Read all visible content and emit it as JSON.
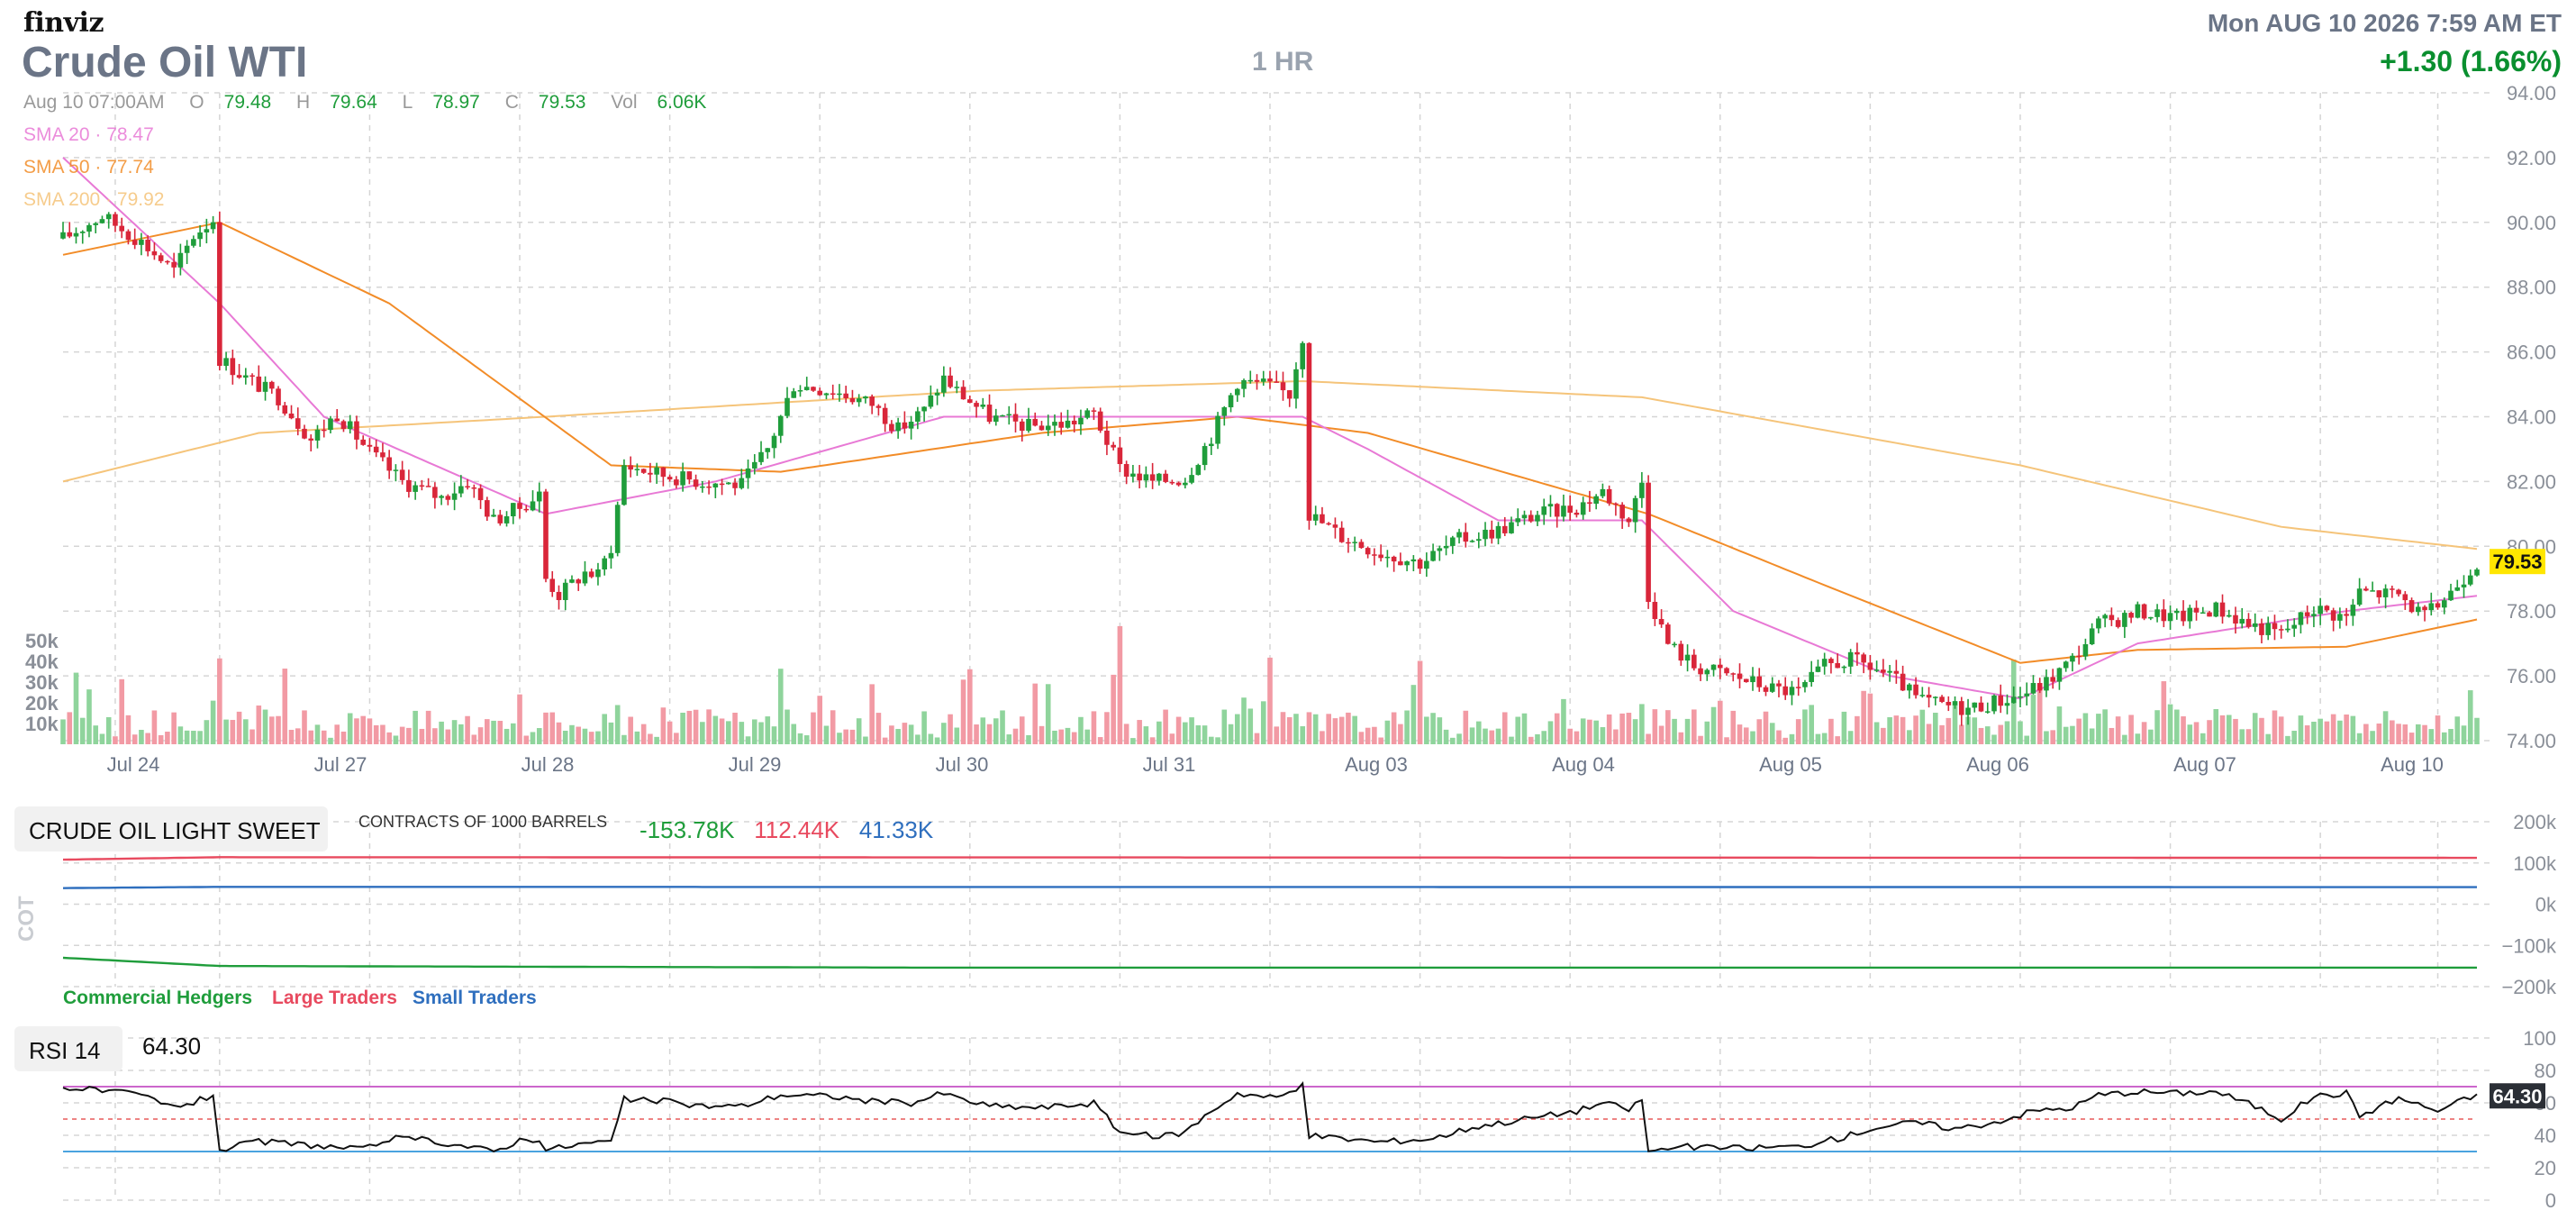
{
  "header": {
    "logo": "finviz",
    "symbol_title": "Crude Oil WTI",
    "timeframe": "1 HR",
    "datetime": "Mon AUG 10 2026 7:59 AM ET",
    "change": "+1.30 (1.66%)"
  },
  "ohlc": {
    "date": "Aug 10 07:00AM",
    "open_label": "O",
    "open": "79.48",
    "high_label": "H",
    "high": "79.64",
    "low_label": "L",
    "low": "78.97",
    "close_label": "C",
    "close": "79.53",
    "vol_label": "Vol",
    "vol": "6.06K"
  },
  "sma": [
    {
      "label": "SMA 20",
      "value": "78.47",
      "color": "#e879d5"
    },
    {
      "label": "SMA 50",
      "value": "77.74",
      "color": "#f28c28"
    },
    {
      "label": "SMA 200",
      "value": "79.92",
      "color": "#f5c47a"
    }
  ],
  "last_price_tag": "79.53",
  "colors": {
    "up": "#1f9d3b",
    "down": "#d9263a",
    "vol_up": "#8fd49c",
    "vol_down": "#f29aa4",
    "grid": "#d5d5d5",
    "tag": "#ffe600",
    "commercial": "#1f9d3b",
    "large": "#e84a5f",
    "small": "#2f6fbe",
    "rsi_upper": "#cc66cc",
    "rsi_lower": "#4aa3df",
    "rsi_mid": "#e85a5a"
  },
  "cot": {
    "title": "CRUDE OIL LIGHT SWEET",
    "subtitle": "CONTRACTS OF 1000 BARRELS",
    "side_label": "COT",
    "commercial_value": "-153.78K",
    "large_value": "112.44K",
    "small_value": "41.33K",
    "legend": {
      "commercial": "Commercial Hedgers",
      "large": "Large Traders",
      "small": "Small Traders"
    },
    "axis_ticks": [
      "200k",
      "100k",
      "0k",
      "−100k",
      "−200k"
    ]
  },
  "rsi": {
    "label": "RSI 14",
    "value": "64.30",
    "axis_ticks": [
      "100",
      "80",
      "60",
      "40",
      "20",
      "0"
    ]
  },
  "chart_data": [
    {
      "type": "candlestick",
      "title": "Crude Oil WTI",
      "timeframe": "1 HR",
      "x_ticks": [
        "Jul 24",
        "Jul 27",
        "Jul 28",
        "Jul 29",
        "Jul 30",
        "Jul 31",
        "Aug 03",
        "Aug 04",
        "Aug 05",
        "Aug 06",
        "Aug 07",
        "Aug 10"
      ],
      "y_ticks": [
        "94.00",
        "92.00",
        "90.00",
        "88.00",
        "86.00",
        "84.00",
        "82.00",
        "80.00",
        "78.00",
        "76.00",
        "74.00"
      ],
      "ylim": [
        74,
        94
      ],
      "volume_ticks": [
        "50k",
        "40k",
        "30k",
        "20k",
        "10k"
      ],
      "volume_max": 60000,
      "close_path": [
        [
          0,
          89.5
        ],
        [
          6,
          90.2
        ],
        [
          12,
          89.4
        ],
        [
          17,
          88.5
        ],
        [
          20,
          89.6
        ],
        [
          23,
          90.1
        ],
        [
          24,
          85.8
        ],
        [
          28,
          85.2
        ],
        [
          33,
          84.6
        ],
        [
          38,
          83.3
        ],
        [
          42,
          84.1
        ],
        [
          47,
          82.9
        ],
        [
          52,
          82.0
        ],
        [
          58,
          81.5
        ],
        [
          62,
          82.0
        ],
        [
          66,
          80.8
        ],
        [
          70,
          81.2
        ],
        [
          73,
          81.6
        ],
        [
          74,
          79.0
        ],
        [
          76,
          78.5
        ],
        [
          80,
          79.2
        ],
        [
          82,
          79.1
        ],
        [
          84,
          80.0
        ],
        [
          86,
          82.5
        ],
        [
          92,
          82.2
        ],
        [
          98,
          82.0
        ],
        [
          104,
          81.9
        ],
        [
          108,
          83.0
        ],
        [
          112,
          85.0
        ],
        [
          118,
          84.8
        ],
        [
          124,
          84.4
        ],
        [
          128,
          83.6
        ],
        [
          132,
          84.2
        ],
        [
          135,
          85.2
        ],
        [
          137,
          84.8
        ],
        [
          142,
          84.0
        ],
        [
          148,
          83.7
        ],
        [
          154,
          83.8
        ],
        [
          158,
          84.1
        ],
        [
          162,
          82.4
        ],
        [
          167,
          82.0
        ],
        [
          172,
          82.1
        ],
        [
          176,
          83.4
        ],
        [
          180,
          85.1
        ],
        [
          184,
          85.0
        ],
        [
          188,
          84.7
        ],
        [
          190,
          86.5
        ],
        [
          191,
          81.0
        ],
        [
          196,
          80.3
        ],
        [
          202,
          79.8
        ],
        [
          208,
          79.5
        ],
        [
          214,
          80.2
        ],
        [
          220,
          80.5
        ],
        [
          226,
          81.0
        ],
        [
          232,
          81.2
        ],
        [
          236,
          81.7
        ],
        [
          240,
          80.8
        ],
        [
          242,
          82.0
        ],
        [
          243,
          78.5
        ],
        [
          246,
          77.0
        ],
        [
          250,
          76.3
        ],
        [
          256,
          76.0
        ],
        [
          262,
          75.6
        ],
        [
          266,
          75.5
        ],
        [
          270,
          76.3
        ],
        [
          274,
          76.5
        ],
        [
          278,
          76.2
        ],
        [
          282,
          75.7
        ],
        [
          284,
          75.3
        ],
        [
          288,
          75.1
        ],
        [
          292,
          75.0
        ],
        [
          296,
          75.2
        ],
        [
          300,
          75.4
        ],
        [
          304,
          75.8
        ],
        [
          308,
          76.5
        ],
        [
          312,
          77.6
        ],
        [
          316,
          77.8
        ],
        [
          318,
          78.0
        ],
        [
          324,
          77.8
        ],
        [
          330,
          78.1
        ],
        [
          335,
          77.6
        ],
        [
          340,
          77.3
        ],
        [
          345,
          78.1
        ],
        [
          350,
          77.8
        ],
        [
          352,
          78.6
        ],
        [
          358,
          78.5
        ],
        [
          362,
          77.8
        ],
        [
          366,
          78.6
        ],
        [
          370,
          79.53
        ]
      ],
      "sma20_path": [
        [
          0,
          92.0
        ],
        [
          24,
          87.5
        ],
        [
          40,
          84.0
        ],
        [
          74,
          81.0
        ],
        [
          100,
          82.0
        ],
        [
          135,
          84.0
        ],
        [
          180,
          84.0
        ],
        [
          190,
          84.0
        ],
        [
          200,
          83.0
        ],
        [
          220,
          80.8
        ],
        [
          242,
          80.8
        ],
        [
          256,
          78.0
        ],
        [
          280,
          76.0
        ],
        [
          300,
          75.3
        ],
        [
          318,
          77.0
        ],
        [
          350,
          78.0
        ],
        [
          370,
          78.47
        ]
      ],
      "sma50_path": [
        [
          0,
          89.0
        ],
        [
          24,
          90.0
        ],
        [
          50,
          87.5
        ],
        [
          84,
          82.5
        ],
        [
          110,
          82.3
        ],
        [
          150,
          83.5
        ],
        [
          180,
          84.0
        ],
        [
          200,
          83.5
        ],
        [
          243,
          81.0
        ],
        [
          270,
          78.8
        ],
        [
          300,
          76.4
        ],
        [
          318,
          76.8
        ],
        [
          350,
          76.9
        ],
        [
          370,
          77.74
        ]
      ],
      "sma200_path": [
        [
          0,
          82.0
        ],
        [
          30,
          83.5
        ],
        [
          74,
          84.0
        ],
        [
          140,
          84.8
        ],
        [
          190,
          85.1
        ],
        [
          242,
          84.6
        ],
        [
          300,
          82.5
        ],
        [
          340,
          80.6
        ],
        [
          370,
          79.92
        ]
      ]
    },
    {
      "type": "line",
      "title": "CRUDE OIL LIGHT SWEET",
      "ylim": [
        -200000,
        200000
      ],
      "series": [
        {
          "name": "Commercial Hedgers",
          "path": [
            [
              0,
              -130000
            ],
            [
              24,
              -150000
            ],
            [
              130,
              -153780
            ],
            [
              370,
              -153780
            ]
          ]
        },
        {
          "name": "Large Traders",
          "path": [
            [
              0,
              108000
            ],
            [
              24,
              114000
            ],
            [
              370,
              112440
            ]
          ]
        },
        {
          "name": "Small Traders",
          "path": [
            [
              0,
              39000
            ],
            [
              24,
              42000
            ],
            [
              370,
              41330
            ]
          ]
        }
      ]
    },
    {
      "type": "line",
      "title": "RSI 14",
      "ylim": [
        0,
        100
      ],
      "reference_lines": [
        70,
        50,
        30
      ],
      "path": [
        [
          0,
          70
        ],
        [
          6,
          67
        ],
        [
          12,
          65
        ],
        [
          16,
          58
        ],
        [
          20,
          60
        ],
        [
          23,
          65
        ],
        [
          24,
          31
        ],
        [
          30,
          36
        ],
        [
          38,
          34
        ],
        [
          46,
          31
        ],
        [
          50,
          38
        ],
        [
          56,
          37
        ],
        [
          62,
          33
        ],
        [
          66,
          30
        ],
        [
          70,
          37
        ],
        [
          73,
          38
        ],
        [
          74,
          31
        ],
        [
          80,
          35
        ],
        [
          84,
          36
        ],
        [
          86,
          62
        ],
        [
          92,
          61
        ],
        [
          98,
          58
        ],
        [
          104,
          58
        ],
        [
          110,
          65
        ],
        [
          118,
          64
        ],
        [
          124,
          61
        ],
        [
          130,
          60
        ],
        [
          135,
          66
        ],
        [
          137,
          63
        ],
        [
          142,
          58
        ],
        [
          150,
          57
        ],
        [
          158,
          60
        ],
        [
          162,
          42
        ],
        [
          168,
          39
        ],
        [
          172,
          42
        ],
        [
          176,
          55
        ],
        [
          180,
          66
        ],
        [
          186,
          63
        ],
        [
          190,
          70
        ],
        [
          191,
          40
        ],
        [
          196,
          38
        ],
        [
          202,
          36
        ],
        [
          210,
          38
        ],
        [
          216,
          45
        ],
        [
          224,
          50
        ],
        [
          232,
          55
        ],
        [
          236,
          60
        ],
        [
          240,
          56
        ],
        [
          242,
          62
        ],
        [
          243,
          30
        ],
        [
          248,
          33
        ],
        [
          256,
          32
        ],
        [
          266,
          33
        ],
        [
          272,
          38
        ],
        [
          278,
          45
        ],
        [
          284,
          48
        ],
        [
          290,
          44
        ],
        [
          296,
          48
        ],
        [
          302,
          55
        ],
        [
          308,
          57
        ],
        [
          312,
          65
        ],
        [
          318,
          67
        ],
        [
          324,
          66
        ],
        [
          330,
          67
        ],
        [
          336,
          58
        ],
        [
          340,
          50
        ],
        [
          345,
          64
        ],
        [
          350,
          66
        ],
        [
          352,
          52
        ],
        [
          358,
          63
        ],
        [
          364,
          55
        ],
        [
          368,
          62
        ],
        [
          370,
          64.3
        ]
      ]
    }
  ]
}
